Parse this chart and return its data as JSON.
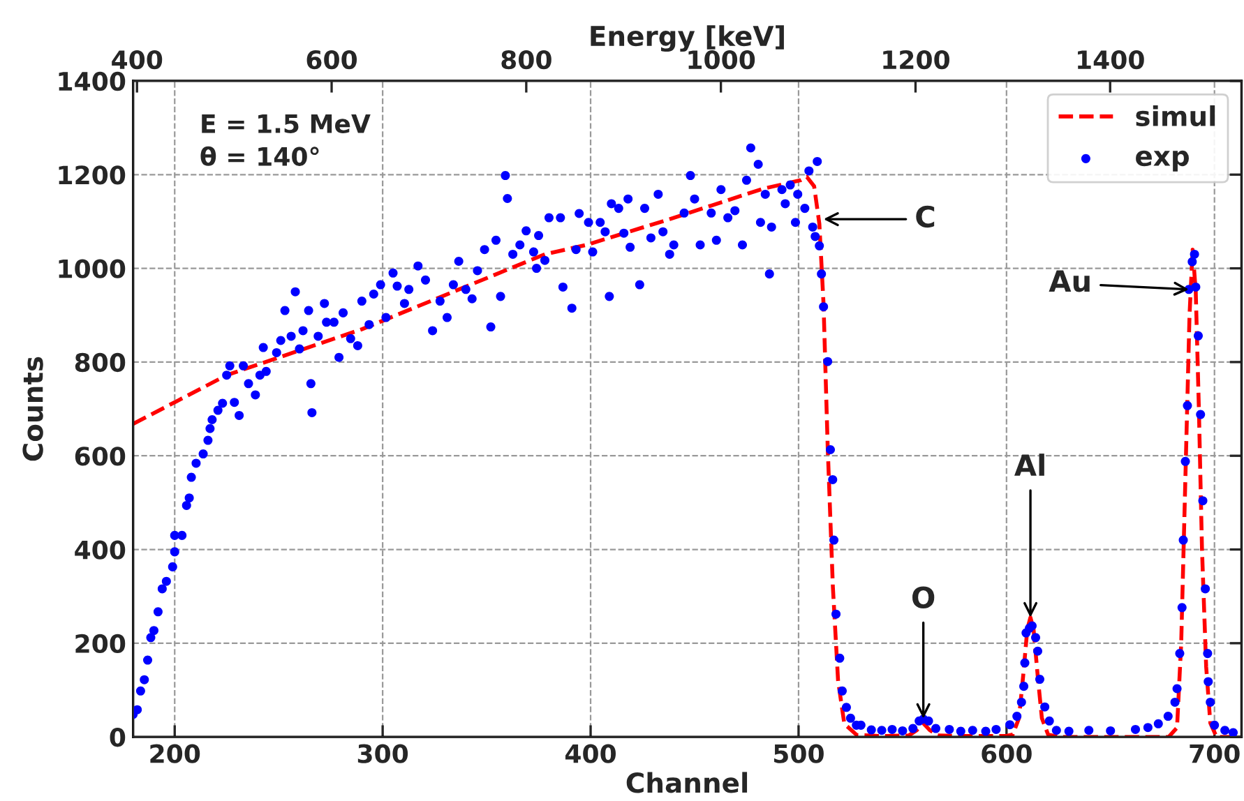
{
  "chart_data": {
    "type": "scatter",
    "xlabel": "Channel",
    "ylabel": "Counts",
    "x2label": "Energy [keV]",
    "xlim": [
      180,
      713
    ],
    "xticks": [
      200,
      300,
      400,
      500,
      600,
      700
    ],
    "ylim": [
      0,
      1400
    ],
    "yticks": [
      0,
      200,
      400,
      600,
      800,
      1000,
      1200,
      1400
    ],
    "x2lim": [
      396,
      1535
    ],
    "x2ticks": [
      400,
      600,
      800,
      1000,
      1200,
      1400
    ],
    "grid": true,
    "legend": "top right",
    "annotations": [
      "E = 1.5 MeV",
      "θ = 140°",
      {
        "text": "C",
        "x": 512,
        "y": 1105
      },
      {
        "text": "Au",
        "x": 687.7,
        "y": 955
      },
      {
        "text": "Al",
        "x": 611.5,
        "y": 255
      },
      {
        "text": "O",
        "x": 560,
        "y": 39
      }
    ],
    "series": [
      {
        "name": "simul",
        "type": "line",
        "color": "#ff0000",
        "line_style": "dashed",
        "marker": "none",
        "x": [
          180,
          225,
          290,
          378,
          398,
          438,
          483,
          501,
          504,
          507.5,
          510,
          512,
          514,
          516.5,
          519,
          522,
          528,
          540,
          553,
          557,
          560,
          563,
          567,
          580,
          600,
          603,
          606,
          608,
          610,
          611.5,
          613,
          615,
          617,
          620,
          625,
          650,
          678,
          682,
          684,
          686,
          688,
          689.5,
          691,
          692.5,
          694,
          696,
          698,
          701,
          713
        ],
        "values": [
          668,
          772,
          870,
          1030,
          1050,
          1105,
          1170,
          1188,
          1195,
          1175,
          1095,
          925,
          620,
          320,
          120,
          28,
          4,
          2,
          3,
          15,
          29,
          15,
          3,
          2,
          2,
          5,
          40,
          130,
          230,
          255,
          230,
          130,
          40,
          5,
          0,
          0,
          0,
          20,
          200,
          550,
          900,
          1040,
          950,
          700,
          400,
          150,
          30,
          0,
          0
        ]
      },
      {
        "name": "exp",
        "color": "#0000ff",
        "marker": "circle",
        "x": [
          180,
          182,
          183.6,
          185.4,
          187,
          188.5,
          190,
          192,
          194,
          196,
          199,
          200,
          200,
          203.5,
          205.7,
          207,
          208,
          210.3,
          213.7,
          216,
          217,
          218,
          220.8,
          223,
          225,
          226.5,
          228.7,
          231,
          233,
          235.5,
          238.8,
          241,
          242.6,
          244,
          249,
          251,
          253,
          256,
          258,
          260,
          261.7,
          264.4,
          265.5,
          266,
          269,
          272,
          273,
          276.6,
          279,
          281,
          284.6,
          288,
          290,
          293.5,
          295.7,
          299,
          301.6,
          305,
          307,
          310.5,
          312.6,
          317,
          320.6,
          324,
          327.6,
          331,
          334,
          336.6,
          340,
          343,
          345.6,
          349,
          352,
          354.5,
          356.7,
          359,
          360,
          362.6,
          366,
          369,
          372.6,
          375,
          378,
          374,
          380,
          385.5,
          386.7,
          391,
          393,
          394.5,
          399,
          401,
          404.6,
          407,
          409,
          410,
          413.5,
          416,
          418,
          419,
          423.6,
          426,
          429,
          432.5,
          434.8,
          438,
          440,
          445,
          448,
          450,
          452.7,
          458,
          460.5,
          462.7,
          466,
          469.4,
          473,
          475,
          477,
          480.6,
          481.7,
          484,
          486,
          487,
          492,
          493.6,
          496,
          498.5,
          499.6,
          503,
          505,
          506.8,
          508,
          509,
          510,
          511,
          512,
          514,
          515.3,
          516.4,
          517,
          518,
          519.8,
          521,
          523,
          525,
          527.8,
          530,
          535,
          540,
          545,
          550,
          555,
          558,
          560,
          562.5,
          566,
          572.5,
          578,
          583.7,
          590,
          595,
          601.6,
          605,
          607.2,
          608.3,
          608.8,
          609.4,
          611,
          612.3,
          614,
          615,
          616,
          618.4,
          620.6,
          624,
          630,
          639.6,
          650,
          662,
          668,
          673,
          677.7,
          681,
          682,
          683.3,
          684.4,
          685,
          686,
          687,
          687.7,
          689.3,
          690.4,
          691,
          692.2,
          693.3,
          694.4,
          695.6,
          696.7,
          697,
          698,
          700,
          705,
          709
        ],
        "values": [
          48,
          58,
          98,
          122,
          164,
          212,
          227,
          267,
          316,
          332,
          363,
          395,
          430,
          430,
          494,
          510,
          554,
          584,
          604,
          633,
          658,
          677,
          697,
          712,
          772,
          792,
          714,
          686,
          792,
          754,
          730,
          772,
          831,
          780,
          820,
          846,
          910,
          855,
          950,
          828,
          867,
          910,
          754,
          692,
          855,
          925,
          885,
          885,
          810,
          905,
          850,
          835,
          930,
          880,
          945,
          965,
          895,
          990,
          962,
          925,
          955,
          1005,
          975,
          867,
          930,
          895,
          965,
          1015,
          955,
          935,
          995,
          1040,
          875,
          1060,
          940,
          1198,
          1149,
          1030,
          1050,
          1080,
          1035,
          1070,
          1017,
          1000,
          1108,
          1108,
          960,
          915,
          1040,
          1117,
          1098,
          1035,
          1098,
          1078,
          940,
          1138,
          1128,
          1075,
          1148,
          1045,
          965,
          1128,
          1065,
          1158,
          1078,
          1030,
          1050,
          1118,
          1198,
          1148,
          1050,
          1118,
          1060,
          1168,
          1108,
          1123,
          1050,
          1188,
          1257,
          1222,
          1098,
          1158,
          988,
          1088,
          1168,
          1138,
          1178,
          1098,
          1158,
          1128,
          1208,
          1088,
          1068,
          1228,
          1048,
          988,
          918,
          801,
          613,
          549,
          420,
          262,
          168,
          98,
          63,
          40,
          25,
          25,
          15,
          14,
          16,
          13,
          18,
          34,
          38,
          34,
          18,
          16,
          12,
          14,
          12,
          16,
          26,
          44,
          74,
          108,
          158,
          222,
          232,
          237,
          212,
          183,
          123,
          64,
          34,
          14,
          12,
          14,
          13,
          16,
          20,
          28,
          44,
          74,
          103,
          178,
          276,
          420,
          588,
          707,
          955,
          1014,
          1030,
          960,
          856,
          688,
          504,
          316,
          178,
          118,
          74,
          25,
          14,
          9
        ]
      }
    ]
  }
}
